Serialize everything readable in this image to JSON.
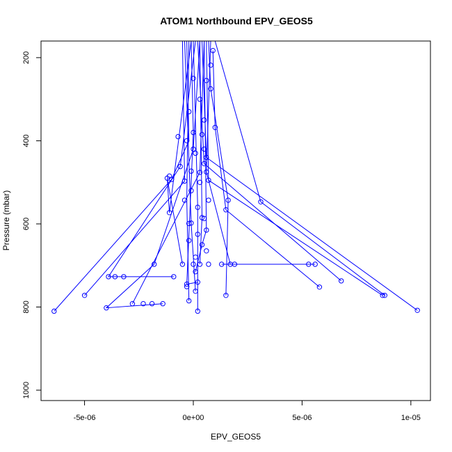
{
  "chart_data": {
    "type": "line",
    "title": "ATOM1 Northbound EPV_GEOS5",
    "xlabel": "EPV_GEOS5",
    "ylabel": "Pressure (mbar)",
    "xlim": [
      -7e-06,
      1.09e-05
    ],
    "ylim": [
      1025,
      160
    ],
    "y_reversed": true,
    "x_ticks": [
      {
        "value": -5e-06,
        "label": "-5e-06"
      },
      {
        "value": 0,
        "label": "0e+00"
      },
      {
        "value": 5e-06,
        "label": "5e-06"
      },
      {
        "value": 1e-05,
        "label": "1e-05"
      }
    ],
    "y_ticks": [
      {
        "value": 200,
        "label": "200"
      },
      {
        "value": 400,
        "label": "400"
      },
      {
        "value": 600,
        "label": "600"
      },
      {
        "value": 800,
        "label": "800"
      },
      {
        "value": 1000,
        "label": "1000"
      }
    ],
    "grid": false,
    "series_color": "#0000ff",
    "points": [
      [
        -6.4e-06,
        810
      ],
      [
        -5e-06,
        772
      ],
      [
        -4e-06,
        802
      ],
      [
        -3.9e-06,
        727
      ],
      [
        -3.6e-06,
        727
      ],
      [
        -3.2e-06,
        727
      ],
      [
        -2.8e-06,
        792
      ],
      [
        -2.3e-06,
        792
      ],
      [
        -1.9e-06,
        792
      ],
      [
        -1.4e-06,
        792
      ],
      [
        -1.8e-06,
        697
      ],
      [
        -1.1e-06,
        573
      ],
      [
        -1.2e-06,
        490
      ],
      [
        -1e-06,
        493
      ],
      [
        -1.1e-06,
        485
      ],
      [
        -9e-07,
        727
      ],
      [
        -7e-07,
        390
      ],
      [
        -6e-07,
        462
      ],
      [
        -5e-07,
        697
      ],
      [
        -4e-07,
        497
      ],
      [
        -4e-07,
        543
      ],
      [
        -3e-07,
        745
      ],
      [
        -3e-07,
        751
      ],
      [
        -2e-07,
        785
      ],
      [
        -3e-07,
        400
      ],
      [
        -2e-07,
        599
      ],
      [
        -1e-07,
        598
      ],
      [
        -1e-07,
        473
      ],
      [
        0.0,
        697
      ],
      [
        0.0,
        380
      ],
      [
        0.0,
        420
      ],
      [
        1e-07,
        715
      ],
      [
        1e-07,
        762
      ],
      [
        2e-07,
        740
      ],
      [
        3e-07,
        697
      ],
      [
        2e-07,
        810
      ],
      [
        3e-07,
        476
      ],
      [
        4e-07,
        585
      ],
      [
        5e-07,
        587
      ],
      [
        5e-07,
        455
      ],
      [
        6e-07,
        475
      ],
      [
        7e-07,
        495
      ],
      [
        6e-07,
        615
      ],
      [
        7e-07,
        697
      ],
      [
        7e-07,
        543
      ],
      [
        6e-07,
        255
      ],
      [
        8e-07,
        218
      ],
      [
        8e-07,
        275
      ],
      [
        9e-07,
        183
      ],
      [
        1e-06,
        368
      ],
      [
        1.3e-06,
        697
      ],
      [
        1.5e-06,
        772
      ],
      [
        1.5e-06,
        566
      ],
      [
        1.6e-06,
        543
      ],
      [
        1.7e-06,
        697
      ],
      [
        1.9e-06,
        697
      ],
      [
        3.1e-06,
        547
      ],
      [
        5.3e-06,
        697
      ],
      [
        5.6e-06,
        697
      ],
      [
        5.8e-06,
        752
      ],
      [
        6.8e-06,
        737
      ],
      [
        8.7e-06,
        772
      ],
      [
        8.8e-06,
        772
      ],
      [
        1.03e-05,
        808
      ],
      [
        4e-07,
        650
      ],
      [
        -2e-07,
        640
      ],
      [
        5e-07,
        420
      ],
      [
        1e-07,
        430
      ],
      [
        3e-07,
        500
      ],
      [
        -1e-07,
        520
      ],
      [
        2e-07,
        560
      ],
      [
        6e-07,
        440
      ],
      [
        4e-07,
        385
      ],
      [
        -2e-07,
        330
      ],
      [
        3e-07,
        300
      ],
      [
        0.0,
        250
      ],
      [
        5e-07,
        350
      ],
      [
        2e-07,
        625
      ],
      [
        1e-07,
        680
      ],
      [
        6e-07,
        665
      ]
    ],
    "profiles": [
      [
        [
          -3e-07,
          160
        ],
        [
          -2e-07,
          400
        ],
        [
          -1e-06,
          493
        ],
        [
          -6.4e-06,
          810
        ]
      ],
      [
        [
          -5e-07,
          160
        ],
        [
          -4e-07,
          497
        ],
        [
          -5e-06,
          772
        ]
      ],
      [
        [
          3e-07,
          160
        ],
        [
          0.0,
          420
        ],
        [
          -1.8e-06,
          697
        ],
        [
          -4e-06,
          802
        ],
        [
          -1.4e-06,
          792
        ]
      ],
      [
        [
          1e-07,
          160
        ],
        [
          -6e-07,
          462
        ],
        [
          -3.9e-06,
          727
        ],
        [
          -9e-07,
          727
        ]
      ],
      [
        [
          5e-07,
          160
        ],
        [
          3e-07,
          476
        ],
        [
          -2.8e-06,
          792
        ]
      ],
      [
        [
          -1e-07,
          160
        ],
        [
          -1.1e-06,
          573
        ],
        [
          -1.2e-06,
          490
        ],
        [
          -5e-07,
          697
        ]
      ],
      [
        [
          8e-07,
          160
        ],
        [
          6e-07,
          475
        ],
        [
          1.7e-06,
          697
        ],
        [
          5.6e-06,
          697
        ],
        [
          1.3e-06,
          697
        ]
      ],
      [
        [
          2e-07,
          160
        ],
        [
          5e-07,
          455
        ],
        [
          6.8e-06,
          737
        ]
      ],
      [
        [
          6e-07,
          160
        ],
        [
          7e-07,
          495
        ],
        [
          8.7e-06,
          772
        ]
      ],
      [
        [
          4e-07,
          160
        ],
        [
          6e-07,
          440
        ],
        [
          1.03e-05,
          808
        ]
      ],
      [
        [
          9e-07,
          183
        ],
        [
          1e-06,
          368
        ],
        [
          1.5e-06,
          566
        ],
        [
          5.8e-06,
          752
        ]
      ],
      [
        [
          1e-06,
          160
        ],
        [
          3.1e-06,
          547
        ],
        [
          8.8e-06,
          772
        ]
      ],
      [
        [
          7e-07,
          160
        ],
        [
          8e-07,
          275
        ],
        [
          1.6e-06,
          543
        ],
        [
          1.5e-06,
          772
        ]
      ],
      [
        [
          -2e-07,
          160
        ],
        [
          -3e-07,
          543
        ],
        [
          -2e-07,
          785
        ]
      ],
      [
        [
          0.0,
          160
        ],
        [
          2e-07,
          560
        ],
        [
          2e-07,
          810
        ]
      ],
      [
        [
          -4e-07,
          160
        ],
        [
          -1e-07,
          598
        ],
        [
          1e-07,
          762
        ]
      ],
      [
        [
          3e-07,
          160
        ],
        [
          4e-07,
          585
        ],
        [
          3e-07,
          697
        ]
      ],
      [
        [
          5e-07,
          160
        ],
        [
          6e-07,
          615
        ],
        [
          4e-07,
          650
        ],
        [
          1e-07,
          715
        ]
      ],
      [
        [
          -1e-07,
          160
        ],
        [
          0.0,
          380
        ],
        [
          -3e-07,
          745
        ],
        [
          2e-07,
          740
        ]
      ]
    ]
  }
}
